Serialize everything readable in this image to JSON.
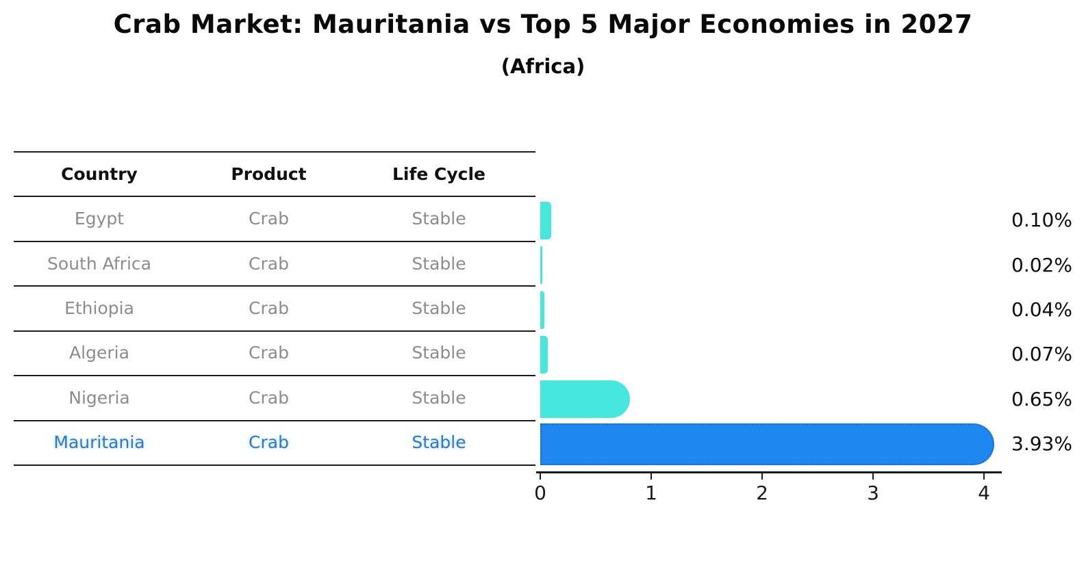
{
  "title": "Crab Market: Mauritania vs Top 5 Major Economies in 2027",
  "subtitle": "(Africa)",
  "table": {
    "headers": [
      "Country",
      "Product",
      "Life Cycle"
    ],
    "rows": [
      {
        "country": "Egypt",
        "product": "Crab",
        "life_cycle": "Stable",
        "highlight": false
      },
      {
        "country": "South Africa",
        "product": "Crab",
        "life_cycle": "Stable",
        "highlight": false
      },
      {
        "country": "Ethiopia",
        "product": "Crab",
        "life_cycle": "Stable",
        "highlight": false
      },
      {
        "country": "Algeria",
        "product": "Crab",
        "life_cycle": "Stable",
        "highlight": false
      },
      {
        "country": "Nigeria",
        "product": "Crab",
        "life_cycle": "Stable",
        "highlight": false
      },
      {
        "country": "Mauritania",
        "product": "Crab",
        "life_cycle": "Stable",
        "highlight": true
      }
    ]
  },
  "chart_data": {
    "type": "bar",
    "orientation": "horizontal",
    "title": "Crab Market: Mauritania vs Top 5 Major Economies in 2027",
    "subtitle": "(Africa)",
    "categories": [
      "Egypt",
      "South Africa",
      "Ethiopia",
      "Algeria",
      "Nigeria",
      "Mauritania"
    ],
    "values": [
      0.1,
      0.02,
      0.04,
      0.07,
      0.65,
      3.93
    ],
    "value_labels": [
      "0.10%",
      "0.02%",
      "0.04%",
      "0.07%",
      "0.65%",
      "3.93%"
    ],
    "xlabel": "",
    "ylabel": "",
    "xlim": [
      0,
      4.15
    ],
    "xticks": [
      "0",
      "1",
      "2",
      "3",
      "4"
    ],
    "grid": false,
    "legend": false,
    "highlight_index": 5,
    "bar_color": "#46E8DE",
    "highlight_bar_color": "#1E88F0",
    "highlight_edge_color": "#1363CF"
  },
  "colors": {
    "background": "#FFFFFF",
    "header_text": "#111111",
    "row_text": "#8C8C8C",
    "highlight_text": "#2878D8",
    "line": "#1A1A1A"
  }
}
